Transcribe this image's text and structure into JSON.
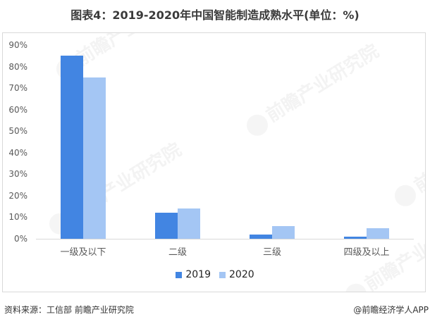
{
  "title": "图表4：2019-2020年中国智能制造成熟水平(单位：%)",
  "source": "资料来源：工信部 前瞻产业研究院",
  "credit": "@前瞻经济学人APP",
  "watermark_text": "前瞻产业研究院",
  "colors": {
    "series_2019": "#4285E2",
    "series_2020": "#A4C6F4",
    "axis": "#D9D9D9",
    "frame": "#D9D9D9"
  },
  "chart_data": {
    "type": "bar",
    "title": "图表4：2019-2020年中国智能制造成熟水平(单位：%)",
    "xlabel": "",
    "ylabel": "",
    "categories": [
      "一级及以下",
      "二级",
      "三级",
      "四级及以上"
    ],
    "series": [
      {
        "name": "2019",
        "values": [
          85,
          12,
          2,
          1
        ],
        "color": "#4285E2"
      },
      {
        "name": "2020",
        "values": [
          75,
          14,
          6,
          5
        ],
        "color": "#A4C6F4"
      }
    ],
    "ylim": [
      0,
      90
    ],
    "yticks": [
      "0%",
      "10%",
      "20%",
      "30%",
      "40%",
      "50%",
      "60%",
      "70%",
      "80%",
      "90%"
    ],
    "grid": false,
    "legend_position": "bottom"
  }
}
